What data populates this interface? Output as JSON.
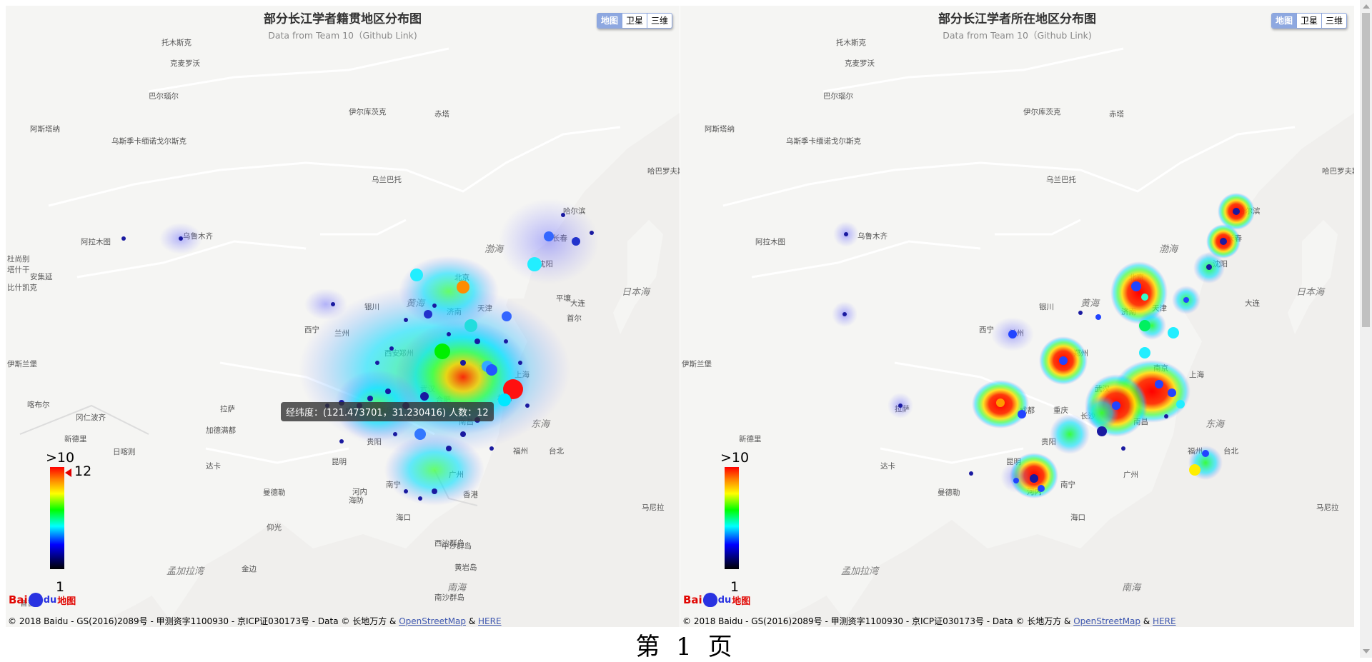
{
  "panels": [
    {
      "title": "部分长江学者籍贯地区分布图",
      "subtitle": "Data from Team 10（Github Link)",
      "maptype_buttons": [
        "地图",
        "卫星",
        "三维"
      ],
      "legend": {
        "max_label": ">10",
        "min_label": "1",
        "pointer_value": "12"
      },
      "tooltip": "经纬度：(121.473701，31.230416) 人数：12"
    },
    {
      "title": "部分长江学者所在地区分布图",
      "subtitle": "Data from Team 10（Github Link)",
      "maptype_buttons": [
        "地图",
        "卫星",
        "三维"
      ],
      "legend": {
        "max_label": ">10",
        "min_label": "1"
      }
    }
  ],
  "basemap_labels": [
    "托木斯克",
    "克麦罗沃",
    "巴尔瑙尔",
    "乌斯季卡缅诺戈尔斯克",
    "伊尔库茨克",
    "赤塔",
    "哈巴罗夫斯克",
    "乌兰巴托",
    "乌鲁木齐",
    "阿拉木图",
    "哈尔滨",
    "长春",
    "沈阳",
    "北京",
    "天津",
    "大连",
    "平壤",
    "首尔",
    "济南",
    "郑州",
    "西安",
    "西宁",
    "兰州",
    "银川",
    "成都",
    "重庆",
    "拉萨",
    "昆明",
    "贵阳",
    "南宁",
    "广州",
    "香港",
    "海口",
    "上海",
    "杭州",
    "福州",
    "台北",
    "南京",
    "合肥",
    "武汉",
    "长沙",
    "南昌",
    "东海",
    "黄海",
    "渤海",
    "日本海",
    "南海",
    "孟加拉湾",
    "海防",
    "河内",
    "曼德勒",
    "仰光",
    "达卡",
    "加德满都",
    "新德里",
    "伊斯兰堡",
    "喀布尔",
    "杜尚别",
    "阿斯塔纳",
    "塔什干",
    "安集延",
    "比什凯克",
    "冈仁波齐",
    "日喀则",
    "马尼拉",
    "金边",
    "普吉",
    "南沙群岛",
    "中沙群岛",
    "黄岩岛",
    "西沙群岛"
  ],
  "baidu_logo": {
    "bai": "Bai",
    "du": "du",
    "map": "地图"
  },
  "copyright": {
    "text": "© 2018 Baidu - GS(2016)2089号 - 甲测资字1100930 - 京ICP证030173号 - Data © 长地万方 & ",
    "osm": "OpenStreetMap",
    "and": " & ",
    "here": "HERE"
  },
  "page_footer": "第 1 页",
  "colors": {
    "sea": "#f0efed",
    "land": "#f5f5f3",
    "border": "#ffffff",
    "heat_high": "#ff0000",
    "heat_low": "#0000ff",
    "point": "#1a1aa0"
  }
}
